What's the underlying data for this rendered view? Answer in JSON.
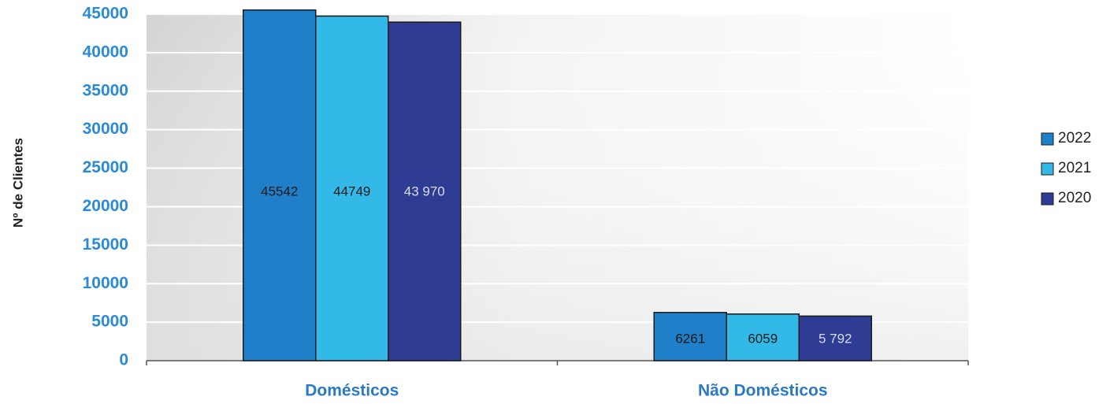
{
  "chart_data": {
    "type": "bar",
    "categories": [
      "Domésticos",
      "Não Domésticos"
    ],
    "series": [
      {
        "name": "2022",
        "values": [
          45542,
          6261
        ],
        "labels": [
          "45542",
          "6261"
        ],
        "color": "#1f7fc8",
        "label_color": "#1a1a1a"
      },
      {
        "name": "2021",
        "values": [
          44749,
          6059
        ],
        "labels": [
          "44749",
          "6059"
        ],
        "color": "#32b9e8",
        "label_color": "#1a1a1a"
      },
      {
        "name": "2020",
        "values": [
          43970,
          5792
        ],
        "labels": [
          "43 970",
          "5 792"
        ],
        "color": "#2e3d93",
        "label_color": "#d8dcf0"
      }
    ],
    "ylabel": "Nº de Clientes",
    "xlabel": "",
    "ylim": [
      0,
      45000
    ],
    "yticks": [
      "0",
      "5000",
      "10000",
      "15000",
      "20000",
      "25000",
      "30000",
      "35000",
      "40000",
      "45000"
    ],
    "grid": true,
    "legend": "right",
    "colors": {
      "tick_text": "#2a8ad6",
      "category_text": "#2a78c8"
    }
  }
}
